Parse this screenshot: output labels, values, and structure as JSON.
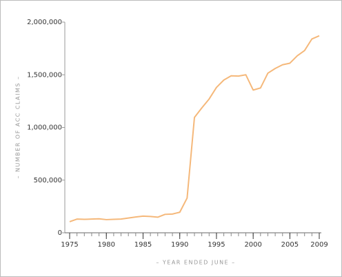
{
  "chart_data": {
    "type": "line",
    "x_label": "– YEAR ENDED JUNE –",
    "y_label": "– NUMBER OF ACC CLAIMS –",
    "x": [
      1975,
      1976,
      1977,
      1978,
      1979,
      1980,
      1981,
      1982,
      1983,
      1984,
      1985,
      1986,
      1987,
      1988,
      1989,
      1990,
      1991,
      1992,
      1993,
      1994,
      1995,
      1996,
      1997,
      1998,
      1999,
      2000,
      2001,
      2002,
      2003,
      2004,
      2005,
      2006,
      2007,
      2008,
      2009
    ],
    "series": [
      {
        "color": "#f5b87a",
        "values": [
          105000,
          130000,
          128000,
          130000,
          133000,
          125000,
          128000,
          130000,
          140000,
          150000,
          158000,
          155000,
          148000,
          175000,
          178000,
          195000,
          330000,
          1095000,
          1185000,
          1270000,
          1380000,
          1450000,
          1490000,
          1488000,
          1500000,
          1355000,
          1375000,
          1515000,
          1560000,
          1595000,
          1610000,
          1680000,
          1730000,
          1840000,
          1870000
        ]
      }
    ],
    "xlim": [
      1975,
      2009
    ],
    "xticks": [
      1975,
      1980,
      1985,
      1990,
      1995,
      2000,
      2005,
      2009
    ],
    "ylim": [
      0,
      2000000
    ],
    "yticks": [
      0,
      {
        "value": 500000,
        "label": "500,000"
      },
      {
        "value": 1000000,
        "label": "1,000,000"
      },
      {
        "value": 1500000,
        "label": "1,500,000"
      },
      {
        "value": 2000000,
        "label": "2,000,000"
      }
    ]
  }
}
